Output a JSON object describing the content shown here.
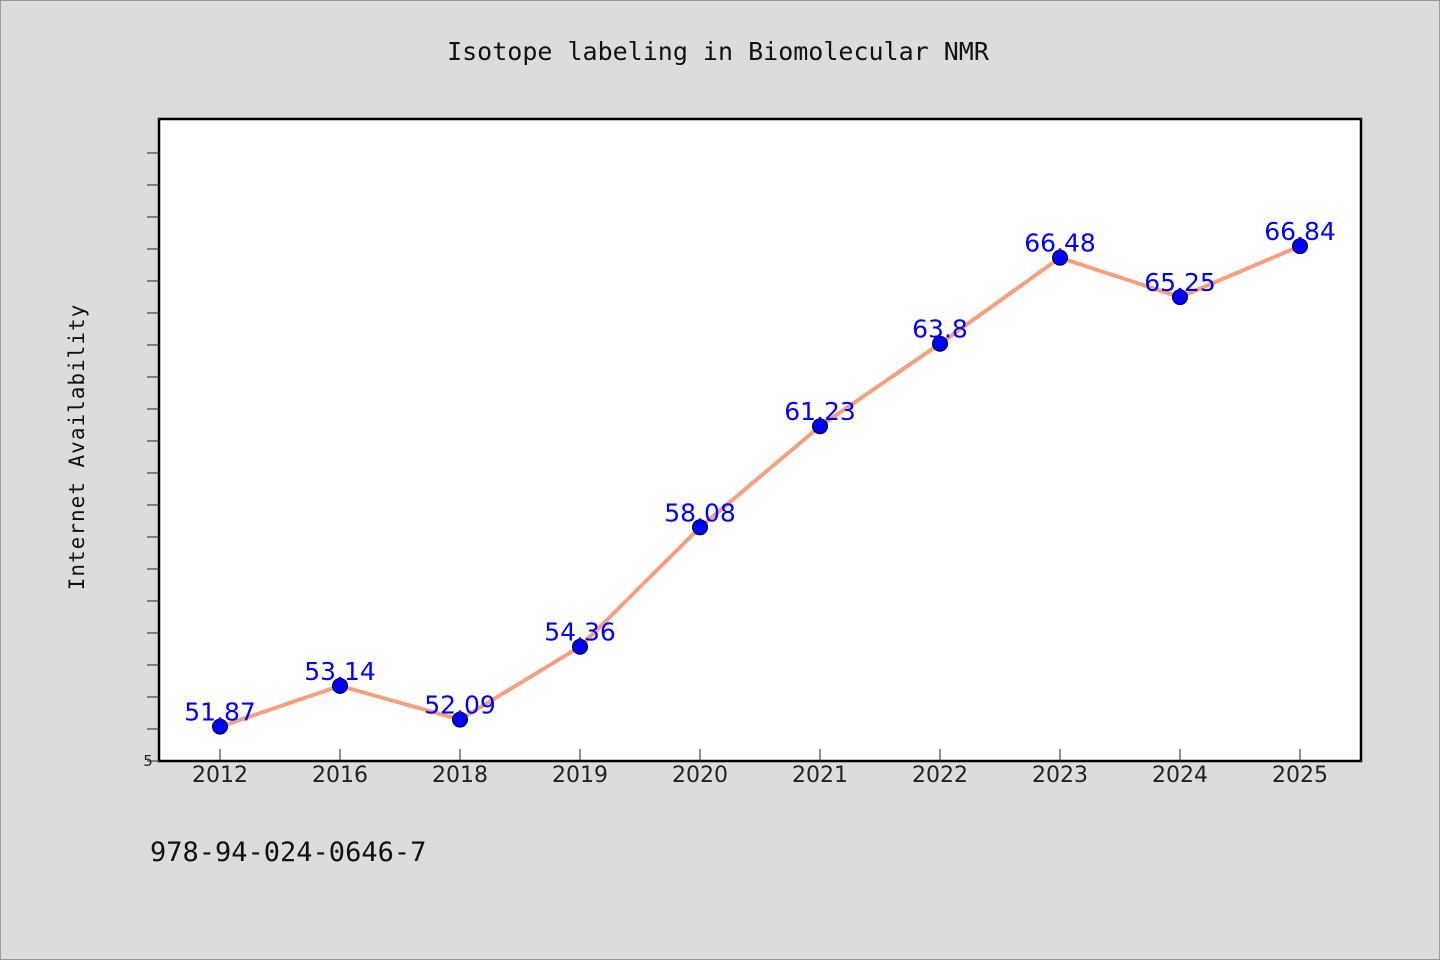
{
  "footer_text": "978-94-024-0646-7",
  "chart_data": {
    "type": "line",
    "title": "Isotope labeling in Biomolecular NMR",
    "xlabel": "",
    "ylabel": "Internet Availability",
    "categories": [
      "2012",
      "2016",
      "2018",
      "2019",
      "2020",
      "2021",
      "2022",
      "2023",
      "2024",
      "2025"
    ],
    "series": [
      {
        "values": [
          51.87,
          53.14,
          52.09,
          54.36,
          58.08,
          61.23,
          63.8,
          66.48,
          65.25,
          66.84
        ],
        "labels": [
          "51.87",
          "53.14",
          "52.09",
          "54.36",
          "58.08",
          "61.23",
          "63.8",
          "66.48",
          "65.25",
          "66.84"
        ],
        "line_color": "#f4a07c",
        "marker_color": "#0000ff"
      }
    ],
    "y_tick_labels": [
      "5"
    ],
    "ylim": [
      50.8,
      70.8
    ],
    "grid": false,
    "legend": "none"
  }
}
